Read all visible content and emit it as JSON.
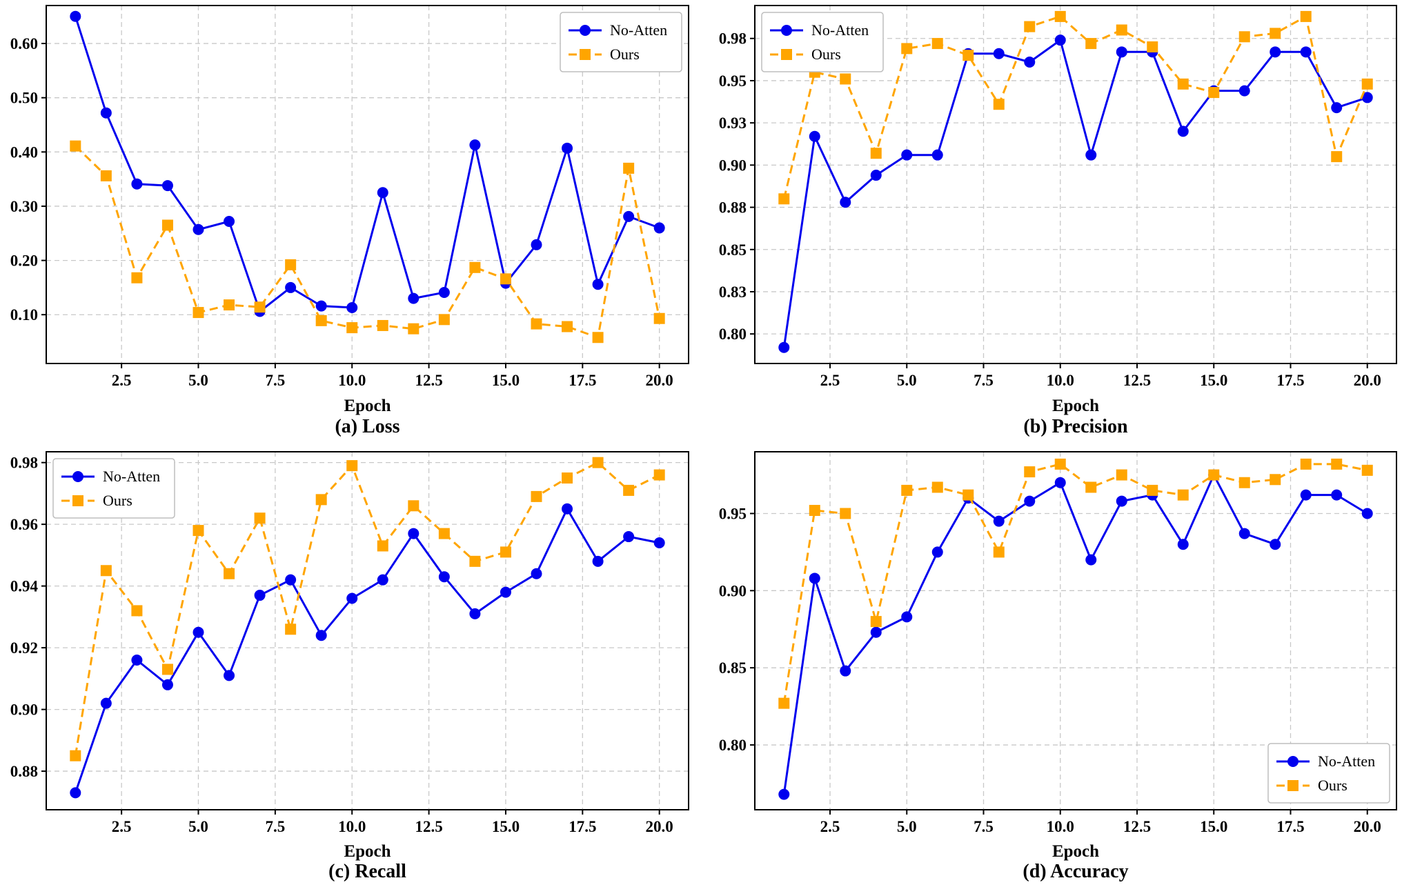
{
  "chart_data": [
    {
      "type": "line",
      "caption": "(a) Loss",
      "xlabel": "Epoch",
      "ylabel": "",
      "xlim": [
        0.05,
        20.95
      ],
      "ylim": [
        0.01,
        0.67
      ],
      "xticks": [
        2.5,
        5.0,
        7.5,
        10.0,
        12.5,
        15.0,
        17.5,
        20.0
      ],
      "xtick_labels": [
        "2.5",
        "5.0",
        "7.5",
        "10.0",
        "12.5",
        "15.0",
        "17.5",
        "20.0"
      ],
      "yticks": [
        0.1,
        0.2,
        0.3,
        0.4,
        0.5,
        0.6
      ],
      "ytick_labels": [
        "0.10",
        "0.20",
        "0.30",
        "0.40",
        "0.50",
        "0.60"
      ],
      "grid": true,
      "legend": "top-right",
      "x": [
        1,
        2,
        3,
        4,
        5,
        6,
        7,
        8,
        9,
        10,
        11,
        12,
        13,
        14,
        15,
        16,
        17,
        18,
        19,
        20
      ],
      "series": [
        {
          "name": "No-Atten",
          "color": "#0000ee",
          "marker": "circle",
          "line": "solid",
          "values": [
            0.65,
            0.472,
            0.341,
            0.338,
            0.257,
            0.272,
            0.106,
            0.15,
            0.116,
            0.113,
            0.325,
            0.13,
            0.141,
            0.413,
            0.158,
            0.229,
            0.407,
            0.156,
            0.281,
            0.26
          ]
        },
        {
          "name": "Ours",
          "color": "#ffa500",
          "marker": "square",
          "line": "dashed",
          "values": [
            0.411,
            0.356,
            0.168,
            0.265,
            0.104,
            0.118,
            0.114,
            0.192,
            0.089,
            0.076,
            0.08,
            0.074,
            0.091,
            0.187,
            0.166,
            0.083,
            0.078,
            0.058,
            0.37,
            0.093
          ]
        }
      ]
    },
    {
      "type": "line",
      "caption": "(b) Precision",
      "xlabel": "Epoch",
      "ylabel": "",
      "xlim": [
        0.05,
        20.95
      ],
      "ylim": [
        0.7825,
        0.9945
      ],
      "xticks": [
        2.5,
        5.0,
        7.5,
        10.0,
        12.5,
        15.0,
        17.5,
        20.0
      ],
      "xtick_labels": [
        "2.5",
        "5.0",
        "7.5",
        "10.0",
        "12.5",
        "15.0",
        "17.5",
        "20.0"
      ],
      "yticks": [
        0.8,
        0.825,
        0.85,
        0.875,
        0.9,
        0.925,
        0.95,
        0.975
      ],
      "ytick_labels": [
        "0.80",
        "0.83",
        "0.85",
        "0.88",
        "0.90",
        "0.93",
        "0.95",
        "0.98"
      ],
      "grid": true,
      "legend": "top-left",
      "x": [
        1,
        2,
        3,
        4,
        5,
        6,
        7,
        8,
        9,
        10,
        11,
        12,
        13,
        14,
        15,
        16,
        17,
        18,
        19,
        20
      ],
      "series": [
        {
          "name": "No-Atten",
          "color": "#0000ee",
          "marker": "circle",
          "line": "solid",
          "values": [
            0.792,
            0.917,
            0.878,
            0.894,
            0.906,
            0.906,
            0.966,
            0.966,
            0.961,
            0.974,
            0.906,
            0.967,
            0.967,
            0.92,
            0.944,
            0.944,
            0.967,
            0.967,
            0.934,
            0.94
          ]
        },
        {
          "name": "Ours",
          "color": "#ffa500",
          "marker": "square",
          "line": "dashed",
          "values": [
            0.88,
            0.955,
            0.951,
            0.907,
            0.969,
            0.972,
            0.965,
            0.936,
            0.982,
            0.988,
            0.972,
            0.98,
            0.97,
            0.948,
            0.943,
            0.976,
            0.978,
            0.988,
            0.905,
            0.948
          ]
        }
      ]
    },
    {
      "type": "line",
      "caption": "(c) Recall",
      "xlabel": "Epoch",
      "ylabel": "",
      "xlim": [
        0.05,
        20.95
      ],
      "ylim": [
        0.8675,
        0.9835
      ],
      "xticks": [
        2.5,
        5.0,
        7.5,
        10.0,
        12.5,
        15.0,
        17.5,
        20.0
      ],
      "xtick_labels": [
        "2.5",
        "5.0",
        "7.5",
        "10.0",
        "12.5",
        "15.0",
        "17.5",
        "20.0"
      ],
      "yticks": [
        0.88,
        0.9,
        0.92,
        0.94,
        0.96,
        0.98
      ],
      "ytick_labels": [
        "0.88",
        "0.90",
        "0.92",
        "0.94",
        "0.96",
        "0.98"
      ],
      "grid": true,
      "legend": "top-left",
      "x": [
        1,
        2,
        3,
        4,
        5,
        6,
        7,
        8,
        9,
        10,
        11,
        12,
        13,
        14,
        15,
        16,
        17,
        18,
        19,
        20
      ],
      "series": [
        {
          "name": "No-Atten",
          "color": "#0000ee",
          "marker": "circle",
          "line": "solid",
          "values": [
            0.873,
            0.902,
            0.916,
            0.908,
            0.925,
            0.911,
            0.937,
            0.942,
            0.924,
            0.936,
            0.942,
            0.957,
            0.943,
            0.931,
            0.938,
            0.944,
            0.965,
            0.948,
            0.956,
            0.954
          ]
        },
        {
          "name": "Ours",
          "color": "#ffa500",
          "marker": "square",
          "line": "dashed",
          "values": [
            0.885,
            0.945,
            0.932,
            0.913,
            0.958,
            0.944,
            0.962,
            0.926,
            0.968,
            0.979,
            0.953,
            0.966,
            0.957,
            0.948,
            0.951,
            0.969,
            0.975,
            0.98,
            0.971,
            0.976
          ]
        }
      ]
    },
    {
      "type": "line",
      "caption": "(d) Accuracy",
      "xlabel": "Epoch",
      "ylabel": "",
      "xlim": [
        0.05,
        20.95
      ],
      "ylim": [
        0.758,
        0.99
      ],
      "xticks": [
        2.5,
        5.0,
        7.5,
        10.0,
        12.5,
        15.0,
        17.5,
        20.0
      ],
      "xtick_labels": [
        "2.5",
        "5.0",
        "7.5",
        "10.0",
        "12.5",
        "15.0",
        "17.5",
        "20.0"
      ],
      "yticks": [
        0.8,
        0.85,
        0.9,
        0.95
      ],
      "ytick_labels": [
        "0.80",
        "0.85",
        "0.90",
        "0.95"
      ],
      "grid": true,
      "legend": "bottom-right",
      "x": [
        1,
        2,
        3,
        4,
        5,
        6,
        7,
        8,
        9,
        10,
        11,
        12,
        13,
        14,
        15,
        16,
        17,
        18,
        19,
        20
      ],
      "series": [
        {
          "name": "No-Atten",
          "color": "#0000ee",
          "marker": "circle",
          "line": "solid",
          "values": [
            0.768,
            0.908,
            0.848,
            0.873,
            0.883,
            0.925,
            0.96,
            0.945,
            0.958,
            0.97,
            0.92,
            0.958,
            0.962,
            0.93,
            0.975,
            0.937,
            0.93,
            0.962,
            0.962,
            0.95
          ]
        },
        {
          "name": "Ours",
          "color": "#ffa500",
          "marker": "square",
          "line": "dashed",
          "values": [
            0.827,
            0.952,
            0.95,
            0.88,
            0.965,
            0.967,
            0.962,
            0.925,
            0.977,
            0.982,
            0.967,
            0.975,
            0.965,
            0.962,
            0.975,
            0.97,
            0.972,
            0.982,
            0.982,
            0.978
          ]
        }
      ]
    }
  ]
}
